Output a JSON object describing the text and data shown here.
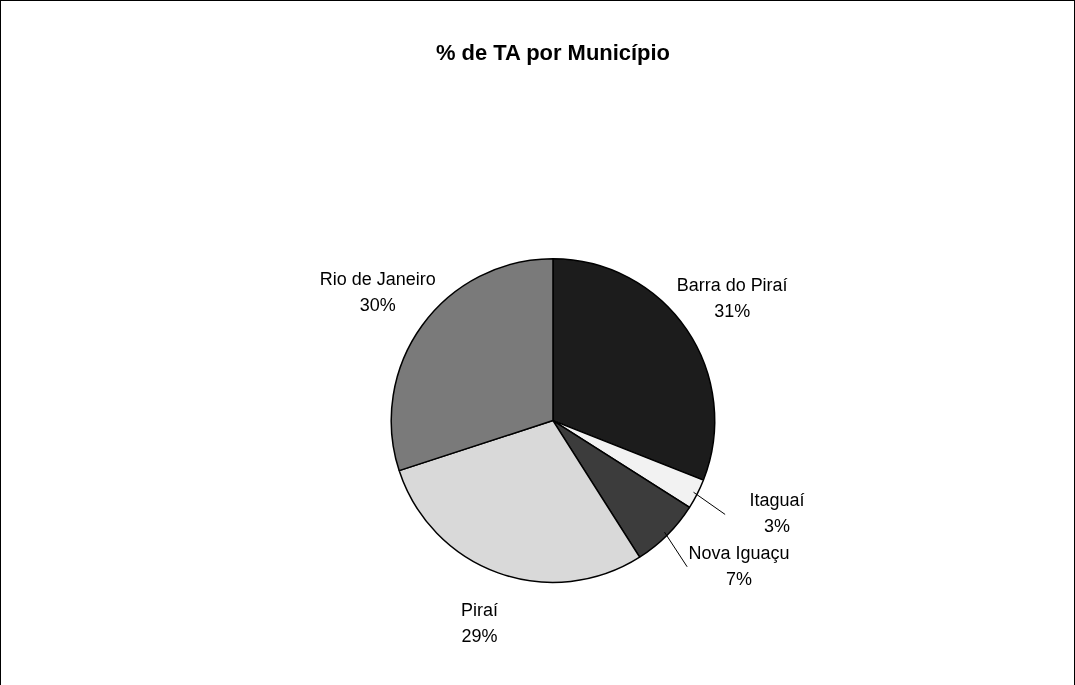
{
  "chart_data": {
    "type": "pie",
    "title": "% de TA por Município",
    "categories": [
      "Barra do Piraí",
      "Itaguaí",
      "Nova Iguaçu",
      "Piraí",
      "Rio de Janeiro"
    ],
    "values": [
      31,
      3,
      7,
      29,
      30
    ],
    "colors": [
      "#1c1c1c",
      "#f2f2f2",
      "#3c3c3c",
      "#d9d9d9",
      "#7a7a7a"
    ],
    "value_labels": [
      "31%",
      "3%",
      "7%",
      "29%",
      "30%"
    ]
  }
}
